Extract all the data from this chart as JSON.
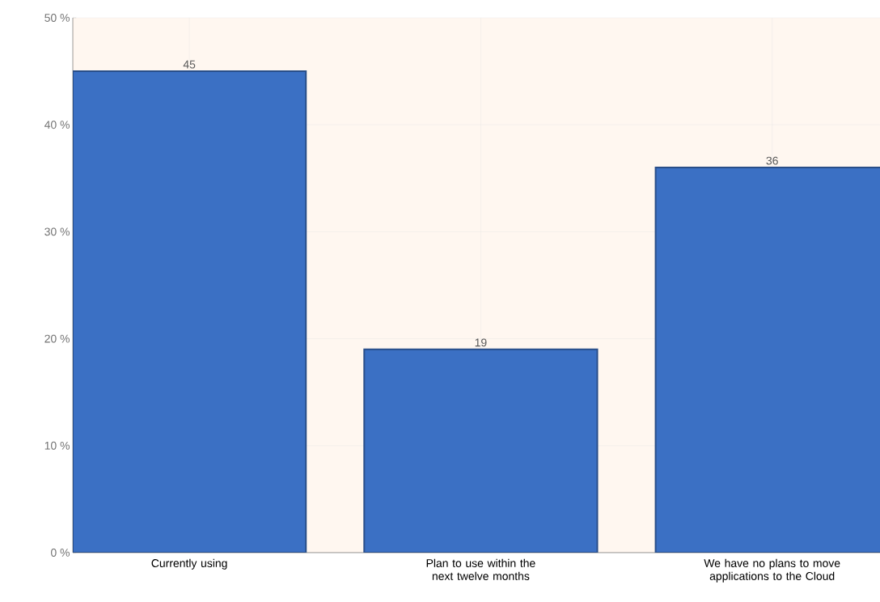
{
  "chart_data": {
    "type": "bar",
    "categories": [
      "Currently using",
      "Plan to use within the next twelve months",
      "We have no plans to move applications to the Cloud"
    ],
    "values": [
      45,
      19,
      36
    ],
    "value_labels": [
      "45",
      "19",
      "36"
    ],
    "color": "#3b70c4",
    "ylim": [
      0,
      50
    ],
    "yticks": [
      {
        "value": 0,
        "label": "0 %"
      },
      {
        "value": 10,
        "label": "10 %"
      },
      {
        "value": 20,
        "label": "20 %"
      },
      {
        "value": 30,
        "label": "30 %"
      },
      {
        "value": 40,
        "label": "40 %"
      },
      {
        "value": 50,
        "label": "50 %"
      }
    ],
    "grid": true
  }
}
